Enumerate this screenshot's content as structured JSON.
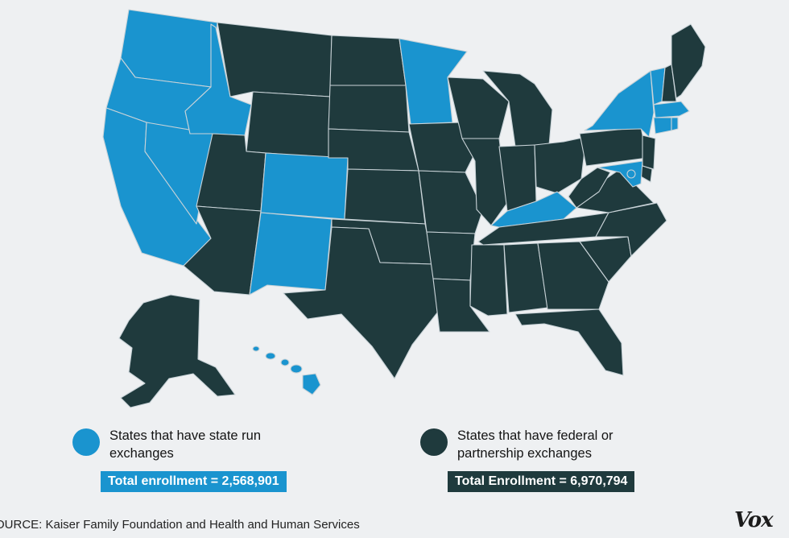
{
  "colors": {
    "state_run": "#1a94cf",
    "federal": "#1f3a3d",
    "background": "#eef0f2",
    "state_border": "#c9d3d8"
  },
  "map": {
    "state_run_states": [
      "WA",
      "OR",
      "CA",
      "ID",
      "NV",
      "CO",
      "NM",
      "MN",
      "KY",
      "NY",
      "VT",
      "MA",
      "CT",
      "RI",
      "MD",
      "DC",
      "HI"
    ],
    "federal_states": [
      "AK",
      "MT",
      "ND",
      "SD",
      "WY",
      "NE",
      "UT",
      "AZ",
      "KS",
      "OK",
      "TX",
      "IA",
      "MO",
      "AR",
      "LA",
      "WI",
      "IL",
      "MI",
      "IN",
      "OH",
      "MS",
      "AL",
      "TN",
      "GA",
      "FL",
      "SC",
      "NC",
      "VA",
      "WV",
      "PA",
      "NJ",
      "DE",
      "ME",
      "NH"
    ]
  },
  "legend": {
    "state_run": {
      "label": "States that  have state run exchanges",
      "total": "Total enrollment = 2,568,901"
    },
    "federal": {
      "label": "States that have federal or partnership exchanges",
      "total": "Total Enrollment = 6,970,794"
    }
  },
  "source": "OURCE: Kaiser Family Foundation and Health and Human Services",
  "logo": "Vox"
}
